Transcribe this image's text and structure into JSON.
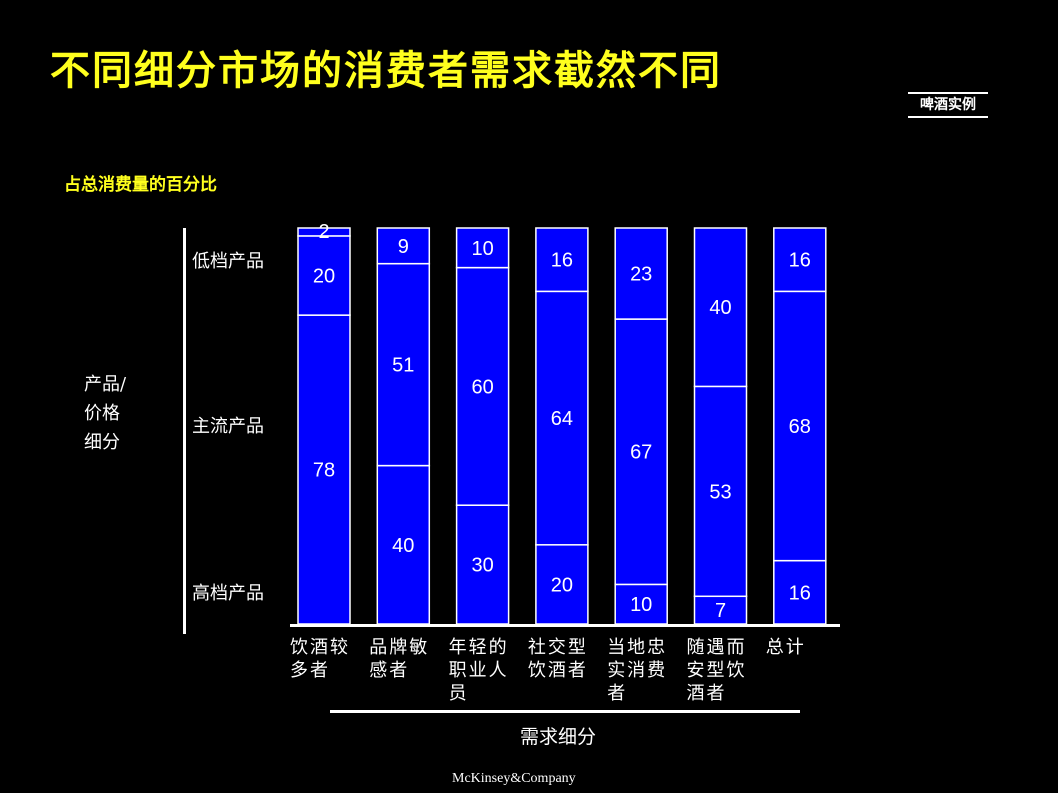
{
  "title": "不同细分市场的消费者需求截然不同",
  "tag": "啤酒实例",
  "subtitle": "占总消费量的百分比",
  "dimension_label_lines": [
    "产品/",
    "价格",
    "细分"
  ],
  "tiers": {
    "low": "低档产品",
    "mainstream": "主流产品",
    "high": "高档产品"
  },
  "categories_lines": [
    [
      "饮酒较",
      "多者"
    ],
    [
      "品牌敏",
      "感者"
    ],
    [
      "年轻的",
      "职业人",
      "员"
    ],
    [
      "社交型",
      "饮酒者"
    ],
    [
      "当地忠",
      "实消费",
      "者"
    ],
    [
      "随遇而",
      "安型饮",
      "酒者"
    ],
    [
      "总计"
    ]
  ],
  "xlabel": "需求细分",
  "footer": "McKinsey&Company",
  "colors": {
    "bar": "#0000ff",
    "border": "#ffffff",
    "title": "#ffff1e",
    "background": "#000000",
    "text": "#ffffff"
  },
  "chart_data": {
    "type": "bar",
    "stacked": true,
    "orientation": "vertical",
    "categories": [
      "饮酒较多者",
      "品牌敏感者",
      "年轻的职业人员",
      "社交型饮酒者",
      "当地忠实消费者",
      "随遇而安型饮酒者",
      "总计"
    ],
    "series": [
      {
        "name": "高档产品",
        "values": [
          78,
          40,
          30,
          20,
          10,
          7,
          16
        ]
      },
      {
        "name": "主流产品",
        "values": [
          20,
          51,
          60,
          64,
          67,
          53,
          68
        ]
      },
      {
        "name": "低档产品",
        "values": [
          2,
          9,
          10,
          16,
          23,
          40,
          16
        ]
      }
    ],
    "ylim": [
      0,
      100
    ],
    "title": "占总消费量的百分比",
    "xlabel": "需求细分",
    "ylabel": "产品/价格细分"
  }
}
